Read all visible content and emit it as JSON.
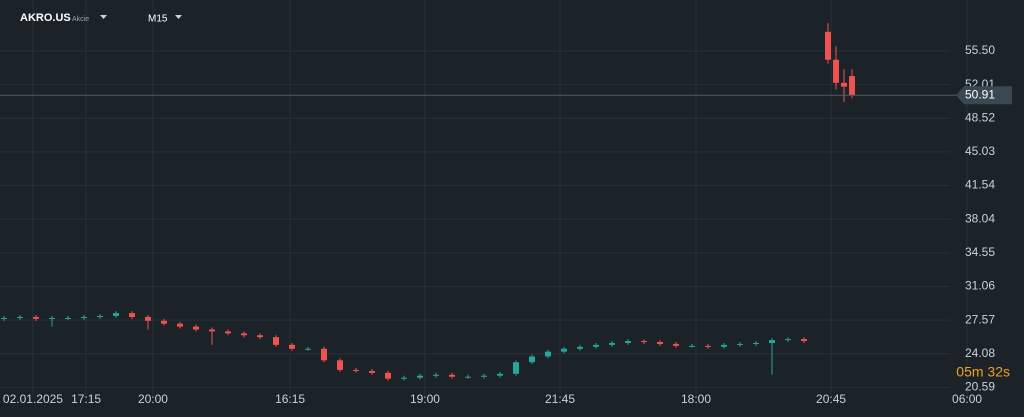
{
  "header": {
    "symbol": "AKRO.US",
    "asset_type": "Akcie",
    "timeframe": "M15"
  },
  "chart_data": {
    "type": "candlestick",
    "x": [
      0,
      1,
      2,
      3,
      4,
      5,
      6,
      7,
      8,
      9,
      10,
      11,
      12,
      13,
      14,
      15,
      16,
      17,
      18,
      19,
      20,
      21,
      22,
      23,
      24,
      25,
      26,
      27,
      28,
      29,
      30,
      31,
      32,
      33,
      34,
      35,
      36,
      37,
      38,
      39,
      40,
      41,
      42,
      43,
      44,
      45,
      46,
      47,
      48,
      49,
      50,
      51.5,
      52,
      52.5,
      53
    ],
    "open": [
      27.7,
      27.8,
      27.9,
      27.7,
      27.8,
      27.8,
      27.9,
      28.0,
      28.3,
      27.9,
      27.5,
      27.2,
      26.9,
      26.6,
      26.4,
      26.2,
      26.0,
      25.8,
      25.0,
      24.6,
      24.6,
      23.4,
      22.4,
      22.3,
      22.1,
      21.5,
      21.6,
      21.8,
      21.9,
      21.7,
      21.7,
      21.8,
      22.0,
      23.2,
      23.8,
      24.3,
      24.6,
      24.8,
      25.0,
      25.2,
      25.4,
      25.3,
      25.1,
      24.9,
      24.9,
      24.8,
      25.0,
      25.1,
      25.2,
      25.5,
      25.6,
      57.5,
      54.6,
      52.2,
      52.9
    ],
    "high": [
      28.0,
      28.1,
      28.1,
      28.0,
      28.0,
      28.1,
      28.2,
      28.5,
      28.5,
      28.1,
      27.7,
      27.4,
      27.1,
      26.8,
      26.6,
      26.4,
      26.2,
      26.0,
      25.2,
      24.8,
      24.8,
      23.6,
      22.6,
      22.5,
      22.3,
      21.8,
      22.0,
      22.1,
      22.1,
      21.9,
      22.0,
      22.2,
      23.4,
      24.0,
      24.5,
      24.8,
      25.0,
      25.2,
      25.4,
      25.6,
      25.6,
      25.5,
      25.3,
      25.1,
      25.1,
      25.2,
      25.3,
      25.4,
      25.7,
      25.8,
      25.8,
      58.4,
      56.0,
      53.6,
      53.6
    ],
    "low": [
      27.5,
      27.6,
      27.5,
      26.9,
      27.6,
      27.6,
      27.7,
      27.8,
      27.7,
      26.6,
      27.0,
      26.7,
      26.4,
      25.0,
      26.0,
      25.8,
      25.6,
      24.8,
      24.4,
      24.4,
      23.2,
      22.2,
      22.1,
      21.9,
      21.3,
      21.3,
      21.4,
      21.6,
      21.5,
      21.5,
      21.5,
      21.6,
      21.8,
      23.0,
      23.6,
      24.1,
      24.4,
      24.6,
      24.8,
      25.0,
      25.1,
      24.9,
      24.7,
      24.7,
      24.6,
      24.6,
      24.8,
      24.9,
      21.9,
      25.3,
      25.2,
      54.2,
      51.5,
      50.2,
      50.6
    ],
    "close": [
      27.8,
      27.9,
      27.7,
      27.8,
      27.8,
      27.9,
      28.0,
      28.3,
      27.9,
      27.5,
      27.2,
      26.9,
      26.6,
      26.4,
      26.2,
      26.0,
      25.8,
      25.0,
      24.6,
      24.6,
      23.4,
      22.4,
      22.3,
      22.1,
      21.5,
      21.6,
      21.8,
      21.9,
      21.7,
      21.7,
      21.8,
      22.0,
      23.2,
      23.8,
      24.3,
      24.6,
      24.8,
      25.0,
      25.2,
      25.4,
      25.3,
      25.1,
      24.9,
      24.9,
      24.8,
      25.0,
      25.1,
      25.2,
      25.5,
      25.6,
      25.4,
      54.6,
      52.2,
      51.8,
      50.91
    ],
    "up_color": "#26a69a",
    "down_color": "#ef5350",
    "xlim": [
      -0.25,
      62
    ],
    "ylim": [
      19.8,
      60.8
    ],
    "xticks": [
      {
        "value": 1.81,
        "label": "02.01.2025"
      },
      {
        "value": 5.13,
        "label": "17:15"
      },
      {
        "value": 9.31,
        "label": "20:00"
      },
      {
        "value": 17.88,
        "label": "16:15"
      },
      {
        "value": 26.31,
        "label": "19:00"
      },
      {
        "value": 34.75,
        "label": "21:45"
      },
      {
        "value": 43.25,
        "label": "18:00"
      },
      {
        "value": 51.69,
        "label": "20:45"
      },
      {
        "value": 60.19,
        "label": "06:00"
      }
    ],
    "yticks": [
      {
        "value": 55.5,
        "label": "55.50"
      },
      52.01,
      48.52,
      45.03,
      41.54,
      38.04,
      34.55,
      31.06,
      27.57,
      24.08,
      20.59
    ],
    "grid": true,
    "current_price": 50.91,
    "countdown": "05m 32s"
  }
}
